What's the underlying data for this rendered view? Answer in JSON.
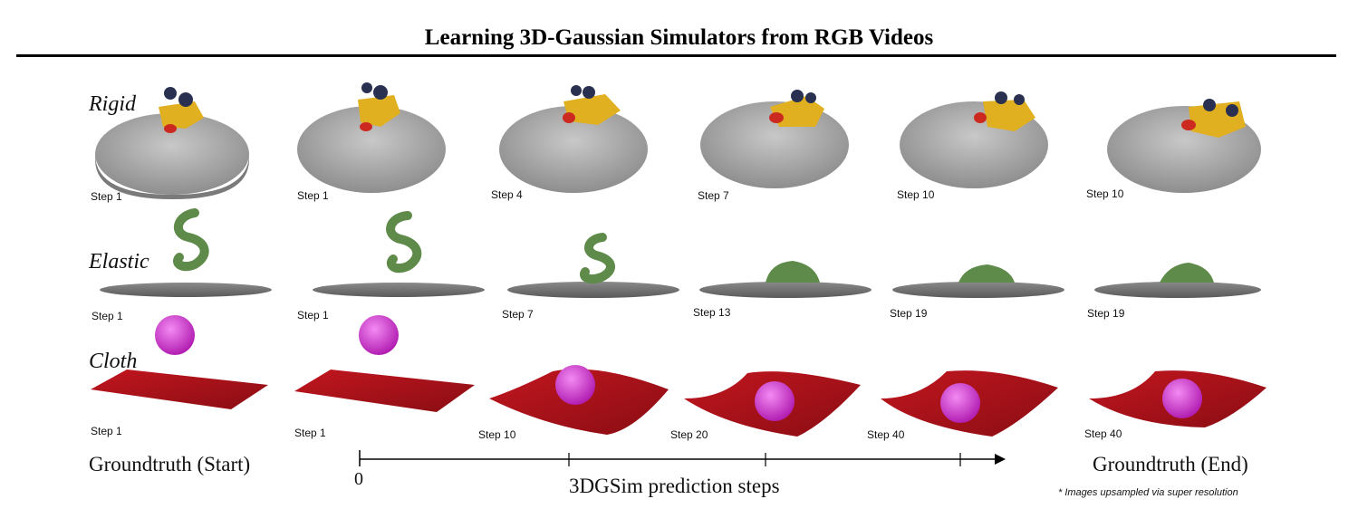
{
  "title": "Learning 3D-Gaussian Simulators from RGB Videos",
  "rows": [
    {
      "label": "Rigid",
      "steps": [
        "Step 1",
        "Step 1",
        "Step 4",
        "Step 7",
        "Step 10",
        "Step 10"
      ]
    },
    {
      "label": "Elastic",
      "steps": [
        "Step 1",
        "Step 1",
        "Step 7",
        "Step 13",
        "Step 19",
        "Step 19"
      ]
    },
    {
      "label": "Cloth",
      "steps": [
        "Step 1",
        "Step 1",
        "Step 10",
        "Step 20",
        "Step 40",
        "Step 40"
      ]
    }
  ],
  "bottom": {
    "gt_start": "Groundtruth (Start)",
    "gt_end": "Groundtruth (End)",
    "axis_zero": "0",
    "axis_label": "3DGSim prediction steps",
    "note": "* Images upsampled via super resolution"
  },
  "colors": {
    "plate": "#a9a9a9",
    "duck": "#e0b020",
    "dragon": "#5e8a4a",
    "cloth": "#b3121a",
    "ball": "#d83ad8"
  }
}
